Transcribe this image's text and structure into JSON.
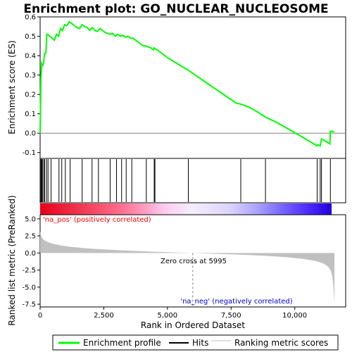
{
  "title": "Enrichment plot: GO_NUCLEAR_NUCLEOSOME",
  "colors": {
    "es_line": "#00ff00",
    "hits": "#000000",
    "metric_fill": "#c0c0c0",
    "pos_label": "#ff0000",
    "neg_label": "#0000cc",
    "zero_line": "#808080",
    "heat_red": "#e8001a",
    "heat_pink": "#ffb3e6",
    "heat_blue": "#2200dd"
  },
  "legend": {
    "items": [
      {
        "label": "Enrichment profile",
        "icon": "green-line-icon"
      },
      {
        "label": "Hits",
        "icon": "black-line-icon"
      },
      {
        "label": "Ranking metric scores",
        "icon": "gray-line-icon"
      }
    ]
  },
  "chart_data": [
    {
      "type": "line",
      "panel": "enrichment-profile",
      "ylabel": "Enrichment score (ES)",
      "xlim": [
        0,
        12000
      ],
      "ylim": [
        -0.13,
        0.6
      ],
      "y_ticks": [
        "-0.1",
        "0.0",
        "0.1",
        "0.2",
        "0.3",
        "0.4",
        "0.5",
        "0.6"
      ],
      "y_tick_values": [
        -0.1,
        0.0,
        0.1,
        0.2,
        0.3,
        0.4,
        0.5,
        0.6
      ],
      "grid": false,
      "series": [
        {
          "x": [
            0,
            10,
            30,
            60,
            100,
            140,
            170,
            200,
            230,
            260,
            300,
            380,
            480,
            560,
            640,
            720,
            800,
            880,
            960,
            1050,
            1150,
            1250,
            1350,
            1450,
            1550,
            1650,
            1750,
            1850,
            1950,
            2050,
            2150,
            2250,
            2350,
            2450,
            2550,
            2650,
            2750,
            2850,
            2950,
            3050,
            3150,
            3250,
            3350,
            3450,
            3550,
            3650,
            3750,
            3850,
            3950,
            4050,
            4150,
            4250,
            4350,
            4450,
            4480,
            4520,
            4600,
            5000,
            5500,
            5820,
            6200,
            6700,
            7200,
            7700,
            7880,
            8200,
            8600,
            8850,
            9300,
            9800,
            10300,
            10880,
            10900,
            11000,
            11050,
            11200,
            11380,
            11400,
            11500,
            11550
          ],
          "y": [
            0.0,
            0.1,
            0.28,
            0.36,
            0.35,
            0.36,
            0.41,
            0.41,
            0.42,
            0.51,
            0.51,
            0.5,
            0.49,
            0.48,
            0.51,
            0.5,
            0.54,
            0.53,
            0.56,
            0.555,
            0.575,
            0.565,
            0.555,
            0.545,
            0.54,
            0.56,
            0.55,
            0.545,
            0.53,
            0.545,
            0.53,
            0.525,
            0.54,
            0.53,
            0.52,
            0.515,
            0.51,
            0.515,
            0.5,
            0.51,
            0.5,
            0.505,
            0.495,
            0.5,
            0.49,
            0.49,
            0.48,
            0.47,
            0.46,
            0.45,
            0.45,
            0.445,
            0.44,
            0.43,
            0.44,
            0.435,
            0.43,
            0.39,
            0.35,
            0.325,
            0.29,
            0.245,
            0.2,
            0.155,
            0.15,
            0.135,
            0.105,
            0.083,
            0.055,
            0.018,
            -0.02,
            -0.065,
            -0.06,
            -0.065,
            -0.03,
            -0.04,
            -0.055,
            0.01,
            0.01,
            0.005
          ]
        }
      ]
    },
    {
      "type": "scatter",
      "panel": "hits",
      "xlim": [
        0,
        12000
      ],
      "hit_ranks": [
        10,
        40,
        70,
        90,
        140,
        180,
        250,
        310,
        430,
        740,
        850,
        990,
        1180,
        1650,
        2040,
        2290,
        2750,
        3000,
        3200,
        3380,
        3600,
        4170,
        4480,
        4510,
        5820,
        7880,
        8850,
        10880,
        11000,
        11050,
        11400
      ]
    },
    {
      "type": "area",
      "panel": "ranked-metric",
      "xlabel": "Rank in Ordered Dataset",
      "ylabel": "Ranked list metric (PreRanked)",
      "xlim": [
        0,
        12000
      ],
      "ylim": [
        -7.9,
        5.6
      ],
      "x_ticks": [
        "0",
        "2,500",
        "5,000",
        "7,500",
        "10,000"
      ],
      "x_tick_values": [
        0,
        2500,
        5000,
        7500,
        10000
      ],
      "y_ticks": [
        "-7.5",
        "-5.0",
        "-2.5",
        "0.0",
        "2.5",
        "5.0"
      ],
      "y_tick_values": [
        -7.5,
        -5.0,
        -2.5,
        0.0,
        2.5,
        5.0
      ],
      "zero_cross": 5995,
      "zero_cross_label": "Zero cross at 5995",
      "pos_label": "'na_pos' (positively correlated)",
      "neg_label": "'na_neg' (negatively correlated)",
      "x": [
        0,
        20,
        60,
        150,
        300,
        500,
        800,
        1200,
        1700,
        2300,
        3000,
        3800,
        4600,
        5400,
        5995,
        6600,
        7400,
        8200,
        9000,
        9700,
        10300,
        10800,
        11100,
        11300,
        11420,
        11480,
        11520,
        11560
      ],
      "values": [
        3.2,
        2.8,
        2.3,
        1.9,
        1.6,
        1.35,
        1.1,
        0.9,
        0.72,
        0.56,
        0.42,
        0.28,
        0.16,
        0.06,
        0.0,
        -0.08,
        -0.18,
        -0.3,
        -0.45,
        -0.62,
        -0.85,
        -1.15,
        -1.5,
        -1.95,
        -2.6,
        -3.5,
        -5.0,
        -7.5
      ]
    }
  ]
}
